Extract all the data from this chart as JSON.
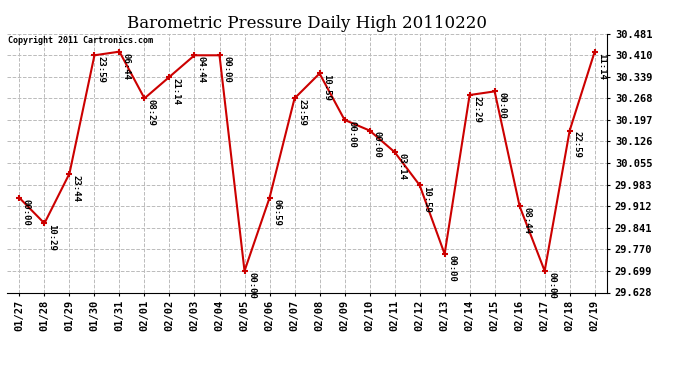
{
  "title": "Barometric Pressure Daily High 20110220",
  "copyright": "Copyright 2011 Cartronics.com",
  "x_labels": [
    "01/27",
    "01/28",
    "01/29",
    "01/30",
    "01/31",
    "02/01",
    "02/02",
    "02/03",
    "02/04",
    "02/05",
    "02/06",
    "02/07",
    "02/08",
    "02/09",
    "02/10",
    "02/11",
    "02/12",
    "02/13",
    "02/14",
    "02/15",
    "02/16",
    "02/17",
    "02/18",
    "02/19"
  ],
  "y_values": [
    29.94,
    29.856,
    30.02,
    30.41,
    30.422,
    30.268,
    30.339,
    30.41,
    30.41,
    29.699,
    29.94,
    30.268,
    30.35,
    30.197,
    30.162,
    30.091,
    29.982,
    29.755,
    30.279,
    30.291,
    29.912,
    29.699,
    30.162,
    30.422
  ],
  "annotations": [
    "00:00",
    "10:29",
    "23:44",
    "23:59",
    "06:44",
    "08:29",
    "21:14",
    "04:44",
    "00:00",
    "00:00",
    "06:59",
    "23:59",
    "10:59",
    "00:00",
    "00:00",
    "03:14",
    "10:59",
    "00:00",
    "22:29",
    "00:00",
    "08:44",
    "00:00",
    "22:59",
    "11:14"
  ],
  "y_min": 29.628,
  "y_max": 30.481,
  "y_ticks": [
    29.628,
    29.699,
    29.77,
    29.841,
    29.912,
    29.983,
    30.055,
    30.126,
    30.197,
    30.268,
    30.339,
    30.41,
    30.481
  ],
  "line_color": "#cc0000",
  "marker_color": "#cc0000",
  "bg_color": "#ffffff",
  "grid_color": "#bbbbbb",
  "title_fontsize": 12,
  "annotation_fontsize": 6.5,
  "tick_fontsize": 7.5,
  "copyright_fontsize": 6.0
}
